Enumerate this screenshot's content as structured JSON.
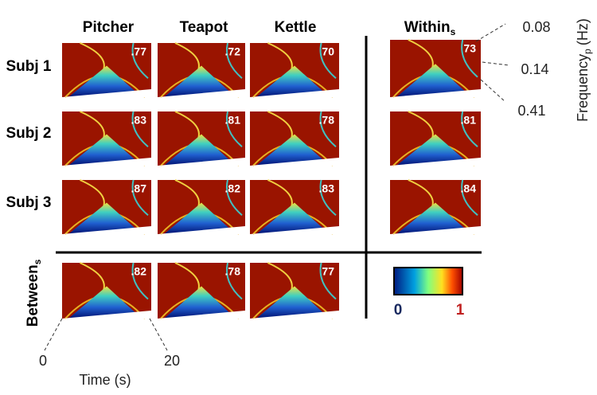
{
  "columns": [
    "Pitcher",
    "Teapot",
    "Kettle"
  ],
  "within_header": {
    "text": "Within",
    "subscript": "s"
  },
  "rows": [
    {
      "label": "Subj 1",
      "values": [
        ".77",
        ".72",
        "70"
      ],
      "within": "73"
    },
    {
      "label": "Subj 2",
      "values": [
        ".83",
        ".81",
        ".78"
      ],
      "within": ".81"
    },
    {
      "label": "Subj 3",
      "values": [
        ".87",
        ".82",
        ".83"
      ],
      "within": ".84"
    }
  ],
  "between": {
    "label": "Between",
    "subscript": "s",
    "values": [
      ".82",
      ".78",
      "77"
    ]
  },
  "colorbar": {
    "min_label": "0",
    "max_label": "1"
  },
  "frequency_axis": {
    "label": "Frequency",
    "subscript": "p",
    "unit": "(Hz)",
    "ticks": [
      "0.08",
      "0.14",
      "0.41"
    ]
  },
  "time_axis": {
    "label": "Time (s)",
    "start": "0",
    "end": "20"
  }
}
